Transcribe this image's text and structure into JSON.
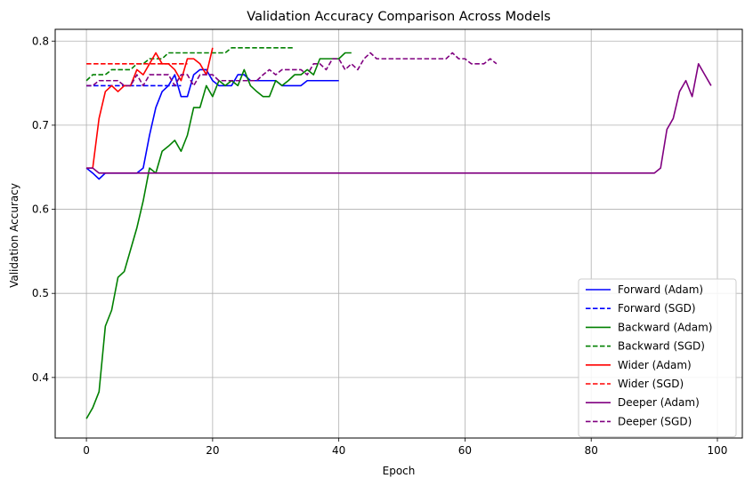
{
  "chart_data": {
    "type": "line",
    "title": "Validation Accuracy Comparison Across Models",
    "xlabel": "Epoch",
    "ylabel": "Validation Accuracy",
    "xlim": [
      -4.95,
      103.95
    ],
    "ylim": [
      0.328,
      0.814
    ],
    "xticks": [
      0,
      20,
      40,
      60,
      80,
      100
    ],
    "yticks": [
      0.4,
      0.5,
      0.6,
      0.7,
      0.8
    ],
    "xtick_labels": [
      "0",
      "20",
      "40",
      "60",
      "80",
      "100"
    ],
    "ytick_labels": [
      "0.4",
      "0.5",
      "0.6",
      "0.7",
      "0.8"
    ],
    "grid": true,
    "legend_position": "lower-right",
    "series": [
      {
        "name": "Forward (Adam)",
        "color": "#0000ff",
        "style": "solid",
        "x": [
          0,
          1,
          2,
          3,
          4,
          5,
          6,
          7,
          8,
          9,
          10,
          11,
          12,
          13,
          14,
          15,
          16,
          17,
          18,
          19,
          20,
          21,
          22,
          23,
          24,
          25,
          26,
          27,
          28,
          29,
          30,
          31,
          32,
          33,
          34,
          35,
          36,
          37,
          38,
          39,
          40
        ],
        "y": [
          0.649,
          0.643,
          0.636,
          0.643,
          0.643,
          0.643,
          0.643,
          0.643,
          0.643,
          0.649,
          0.688,
          0.721,
          0.74,
          0.747,
          0.76,
          0.734,
          0.734,
          0.76,
          0.766,
          0.766,
          0.753,
          0.747,
          0.747,
          0.747,
          0.76,
          0.76,
          0.753,
          0.753,
          0.753,
          0.753,
          0.753,
          0.747,
          0.747,
          0.747,
          0.747,
          0.753,
          0.753,
          0.753,
          0.753,
          0.753,
          0.753
        ]
      },
      {
        "name": "Forward (SGD)",
        "color": "#0000ff",
        "style": "dashed",
        "x": [
          0,
          1,
          2,
          3,
          4,
          5,
          6,
          7,
          8,
          9,
          10,
          11,
          12,
          13,
          14,
          15
        ],
        "y": [
          0.747,
          0.747,
          0.747,
          0.747,
          0.747,
          0.747,
          0.747,
          0.747,
          0.747,
          0.747,
          0.747,
          0.747,
          0.747,
          0.747,
          0.747,
          0.747
        ]
      },
      {
        "name": "Backward (Adam)",
        "color": "#008000",
        "style": "solid",
        "x": [
          0,
          1,
          2,
          3,
          4,
          5,
          6,
          7,
          8,
          9,
          10,
          11,
          12,
          13,
          14,
          15,
          16,
          17,
          18,
          19,
          20,
          21,
          22,
          23,
          24,
          25,
          26,
          27,
          28,
          29,
          30,
          31,
          32,
          33,
          34,
          35,
          36,
          37,
          38,
          39,
          40,
          41,
          42
        ],
        "y": [
          0.351,
          0.364,
          0.383,
          0.461,
          0.48,
          0.519,
          0.526,
          0.552,
          0.578,
          0.61,
          0.649,
          0.643,
          0.669,
          0.675,
          0.682,
          0.669,
          0.688,
          0.721,
          0.721,
          0.747,
          0.734,
          0.753,
          0.747,
          0.753,
          0.747,
          0.766,
          0.747,
          0.74,
          0.734,
          0.734,
          0.753,
          0.747,
          0.753,
          0.76,
          0.76,
          0.766,
          0.76,
          0.779,
          0.779,
          0.779,
          0.779,
          0.786,
          0.786
        ]
      },
      {
        "name": "Backward (SGD)",
        "color": "#008000",
        "style": "dashed",
        "x": [
          0,
          1,
          2,
          3,
          4,
          5,
          6,
          7,
          8,
          9,
          10,
          11,
          12,
          13,
          14,
          15,
          16,
          17,
          18,
          19,
          20,
          21,
          22,
          23,
          24,
          25,
          26,
          27,
          28,
          29,
          30,
          31,
          32,
          33
        ],
        "y": [
          0.753,
          0.76,
          0.76,
          0.76,
          0.766,
          0.766,
          0.766,
          0.766,
          0.773,
          0.773,
          0.779,
          0.779,
          0.779,
          0.786,
          0.786,
          0.786,
          0.786,
          0.786,
          0.786,
          0.786,
          0.786,
          0.786,
          0.786,
          0.792,
          0.792,
          0.792,
          0.792,
          0.792,
          0.792,
          0.792,
          0.792,
          0.792,
          0.792,
          0.792
        ]
      },
      {
        "name": "Wider (Adam)",
        "color": "#ff0000",
        "style": "solid",
        "x": [
          0,
          1,
          2,
          3,
          4,
          5,
          6,
          7,
          8,
          9,
          10,
          11,
          12,
          13,
          14,
          15,
          16,
          17,
          18,
          19,
          20
        ],
        "y": [
          0.649,
          0.649,
          0.708,
          0.74,
          0.747,
          0.74,
          0.747,
          0.747,
          0.766,
          0.76,
          0.773,
          0.786,
          0.773,
          0.773,
          0.766,
          0.753,
          0.779,
          0.779,
          0.773,
          0.76,
          0.792
        ]
      },
      {
        "name": "Wider (SGD)",
        "color": "#ff0000",
        "style": "dashed",
        "x": [
          0,
          1,
          2,
          3,
          4,
          5,
          6,
          7,
          8,
          9,
          10,
          11,
          12,
          13,
          14,
          15,
          16
        ],
        "y": [
          0.773,
          0.773,
          0.773,
          0.773,
          0.773,
          0.773,
          0.773,
          0.773,
          0.773,
          0.773,
          0.773,
          0.773,
          0.773,
          0.773,
          0.773,
          0.773,
          0.773
        ]
      },
      {
        "name": "Deeper (Adam)",
        "color": "#800080",
        "style": "solid",
        "x": [
          0,
          1,
          2,
          3,
          4,
          5,
          10,
          20,
          30,
          40,
          50,
          60,
          70,
          80,
          89,
          90,
          91,
          92,
          93,
          94,
          95,
          96,
          97,
          98,
          99
        ],
        "y": [
          0.649,
          0.649,
          0.643,
          0.643,
          0.643,
          0.643,
          0.643,
          0.643,
          0.643,
          0.643,
          0.643,
          0.643,
          0.643,
          0.643,
          0.643,
          0.643,
          0.649,
          0.695,
          0.708,
          0.74,
          0.753,
          0.734,
          0.773,
          0.76,
          0.747
        ]
      },
      {
        "name": "Deeper (SGD)",
        "color": "#800080",
        "style": "dashed",
        "x": [
          0,
          1,
          2,
          3,
          4,
          5,
          6,
          7,
          8,
          9,
          10,
          11,
          12,
          13,
          14,
          15,
          16,
          17,
          18,
          19,
          20,
          21,
          22,
          23,
          24,
          25,
          26,
          27,
          28,
          29,
          30,
          31,
          32,
          33,
          34,
          35,
          36,
          37,
          38,
          39,
          40,
          41,
          42,
          43,
          44,
          45,
          46,
          47,
          48,
          49,
          50,
          51,
          52,
          53,
          54,
          55,
          56,
          57,
          58,
          59,
          60,
          61,
          62,
          63,
          64,
          65
        ],
        "y": [
          0.747,
          0.747,
          0.753,
          0.753,
          0.753,
          0.753,
          0.747,
          0.747,
          0.76,
          0.747,
          0.76,
          0.76,
          0.76,
          0.76,
          0.747,
          0.76,
          0.76,
          0.747,
          0.76,
          0.76,
          0.76,
          0.753,
          0.753,
          0.753,
          0.753,
          0.753,
          0.753,
          0.753,
          0.76,
          0.766,
          0.76,
          0.766,
          0.766,
          0.766,
          0.766,
          0.76,
          0.773,
          0.773,
          0.766,
          0.779,
          0.779,
          0.766,
          0.773,
          0.766,
          0.779,
          0.786,
          0.779,
          0.779,
          0.779,
          0.779,
          0.779,
          0.779,
          0.779,
          0.779,
          0.779,
          0.779,
          0.779,
          0.779,
          0.786,
          0.779,
          0.779,
          0.773,
          0.773,
          0.773,
          0.779,
          0.773
        ]
      }
    ]
  }
}
